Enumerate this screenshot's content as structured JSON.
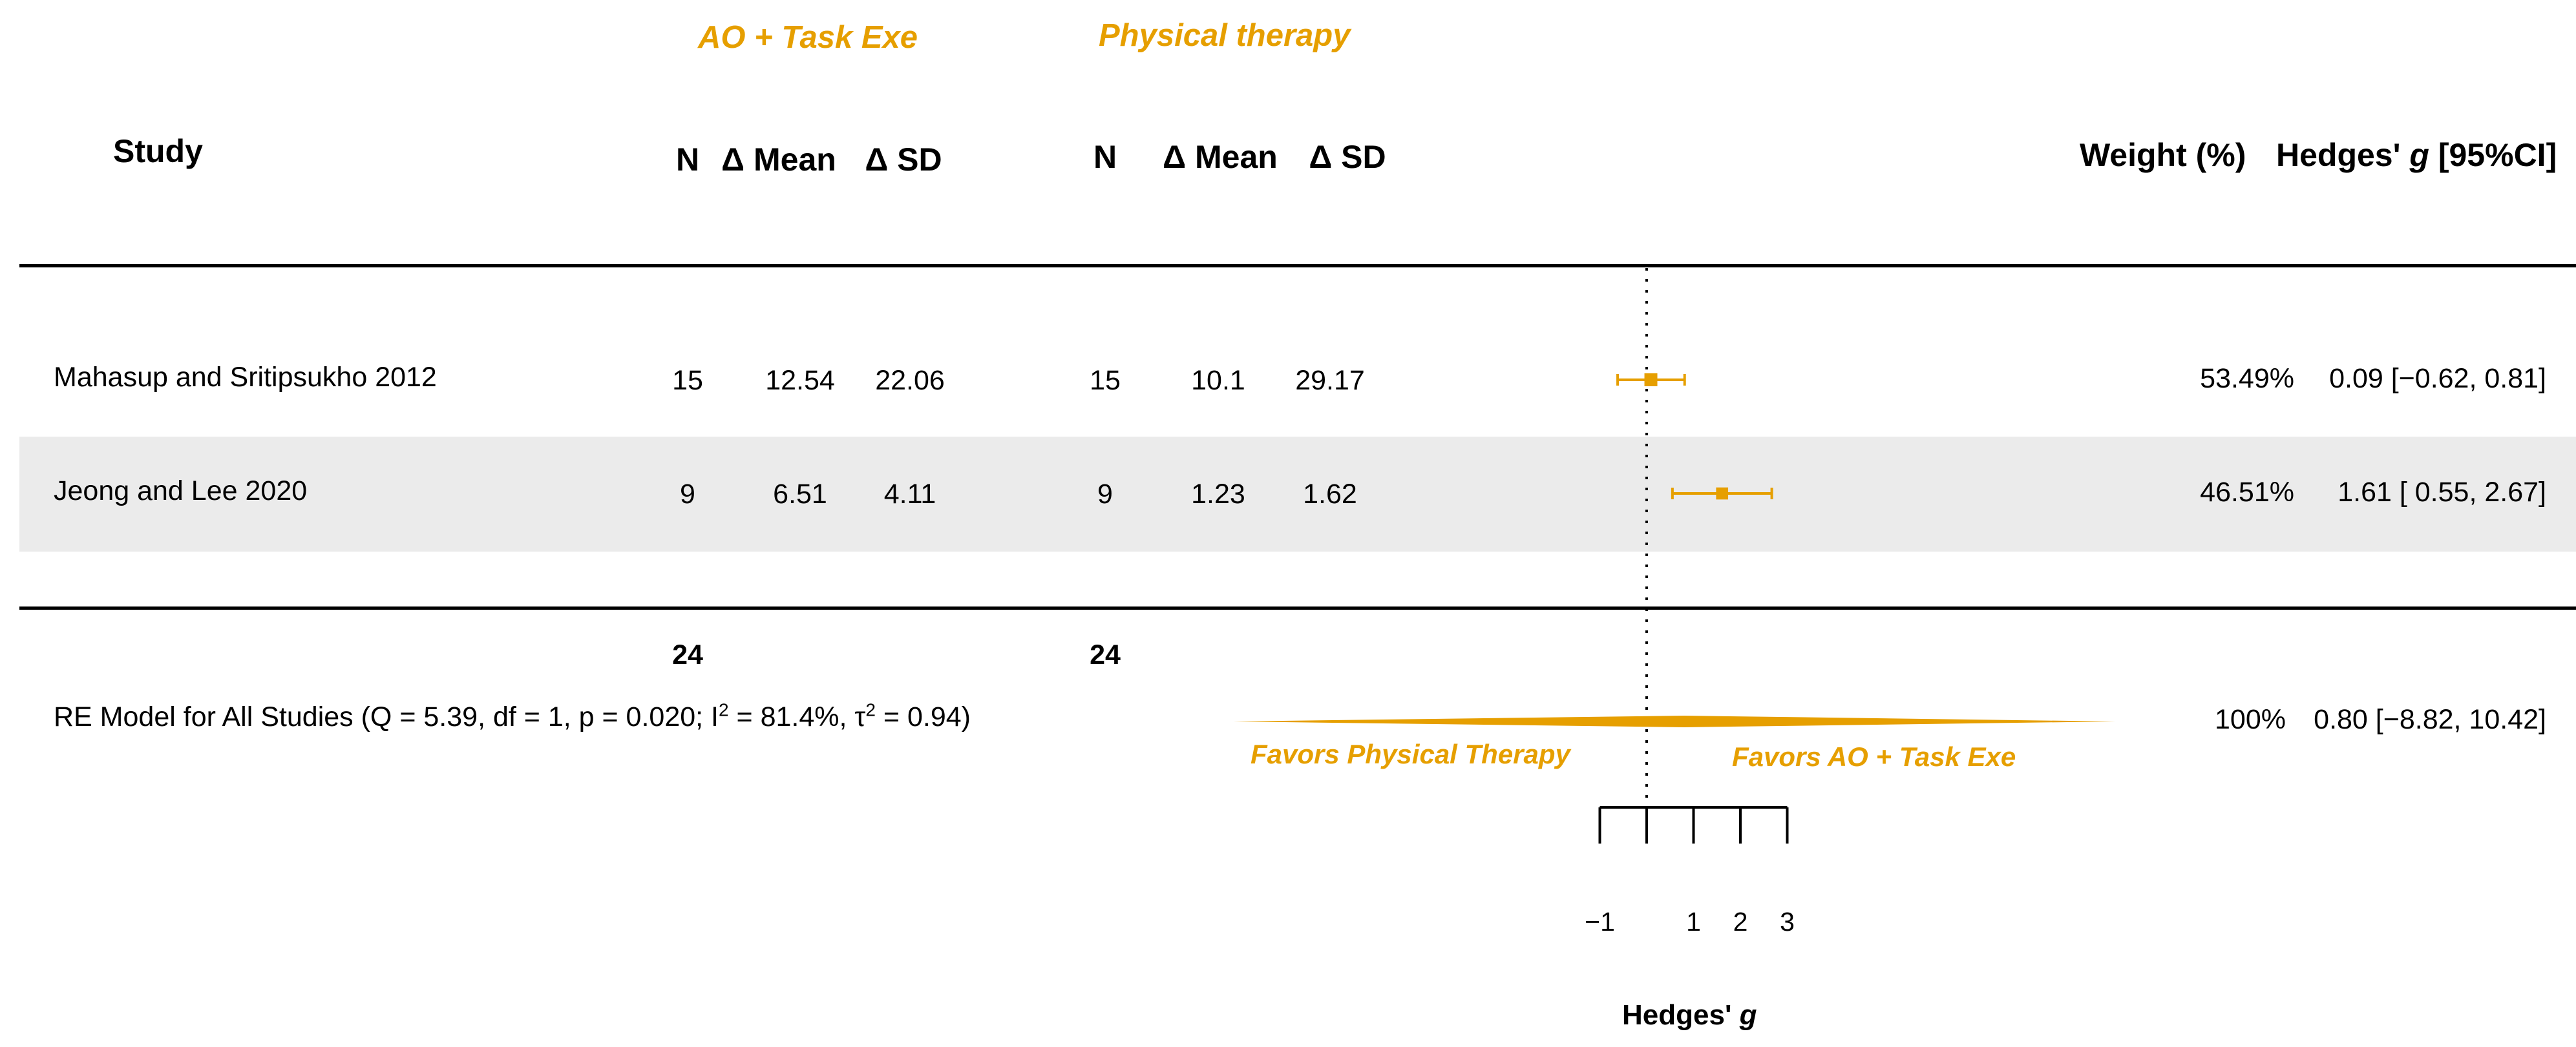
{
  "chart_data": {
    "type": "forest",
    "groups": {
      "treatment": "AO + Task Exe",
      "control": "Physical therapy"
    },
    "headers": {
      "study": "Study",
      "n": "N",
      "mean": "Δ Mean",
      "sd": "Δ SD",
      "weight": "Weight (%)",
      "effect": "Hedges' g [95%CI]"
    },
    "studies": [
      {
        "name": "Mahasup and Sritipsukho 2012",
        "t_n": "15",
        "t_mean": "12.54",
        "t_sd": "22.06",
        "c_n": "15",
        "c_mean": "10.1",
        "c_sd": "29.17",
        "weight": "53.49%",
        "ci_text": "0.09 [−0.62,  0.81]",
        "g": 0.09,
        "lower": -0.62,
        "upper": 0.81
      },
      {
        "name": "Jeong and Lee 2020",
        "t_n": "9",
        "t_mean": "6.51",
        "t_sd": "4.11",
        "c_n": "9",
        "c_mean": "1.23",
        "c_sd": "1.62",
        "weight": "46.51%",
        "ci_text": "1.61 [ 0.55,  2.67]",
        "g": 1.61,
        "lower": 0.55,
        "upper": 2.67
      }
    ],
    "totals": {
      "t_n": "24",
      "c_n": "24"
    },
    "summary": {
      "label": "RE Model for All Studies (Q = 5.39, df = 1, p = 0.020; I",
      "label_mid": " = 81.4%, τ",
      "label_end": " = 0.94)",
      "sup": "2",
      "weight": "100%",
      "ci_text": "0.80 [−8.82, 10.42]",
      "g": 0.8,
      "lower": -8.82,
      "upper": 10.42
    },
    "favors": {
      "left": "Favors Physical Therapy",
      "right": "Favors AO + Task Exe"
    },
    "xaxis": {
      "label": "Hedges'",
      "label_italic": "g",
      "ticks": [
        -1,
        0,
        1,
        2,
        3
      ],
      "tick_labels": [
        "−1",
        "",
        "1",
        "2",
        "3"
      ],
      "null_line": 0
    },
    "colors": {
      "accent": "#E69F00",
      "band": "#EBEBEB"
    }
  }
}
